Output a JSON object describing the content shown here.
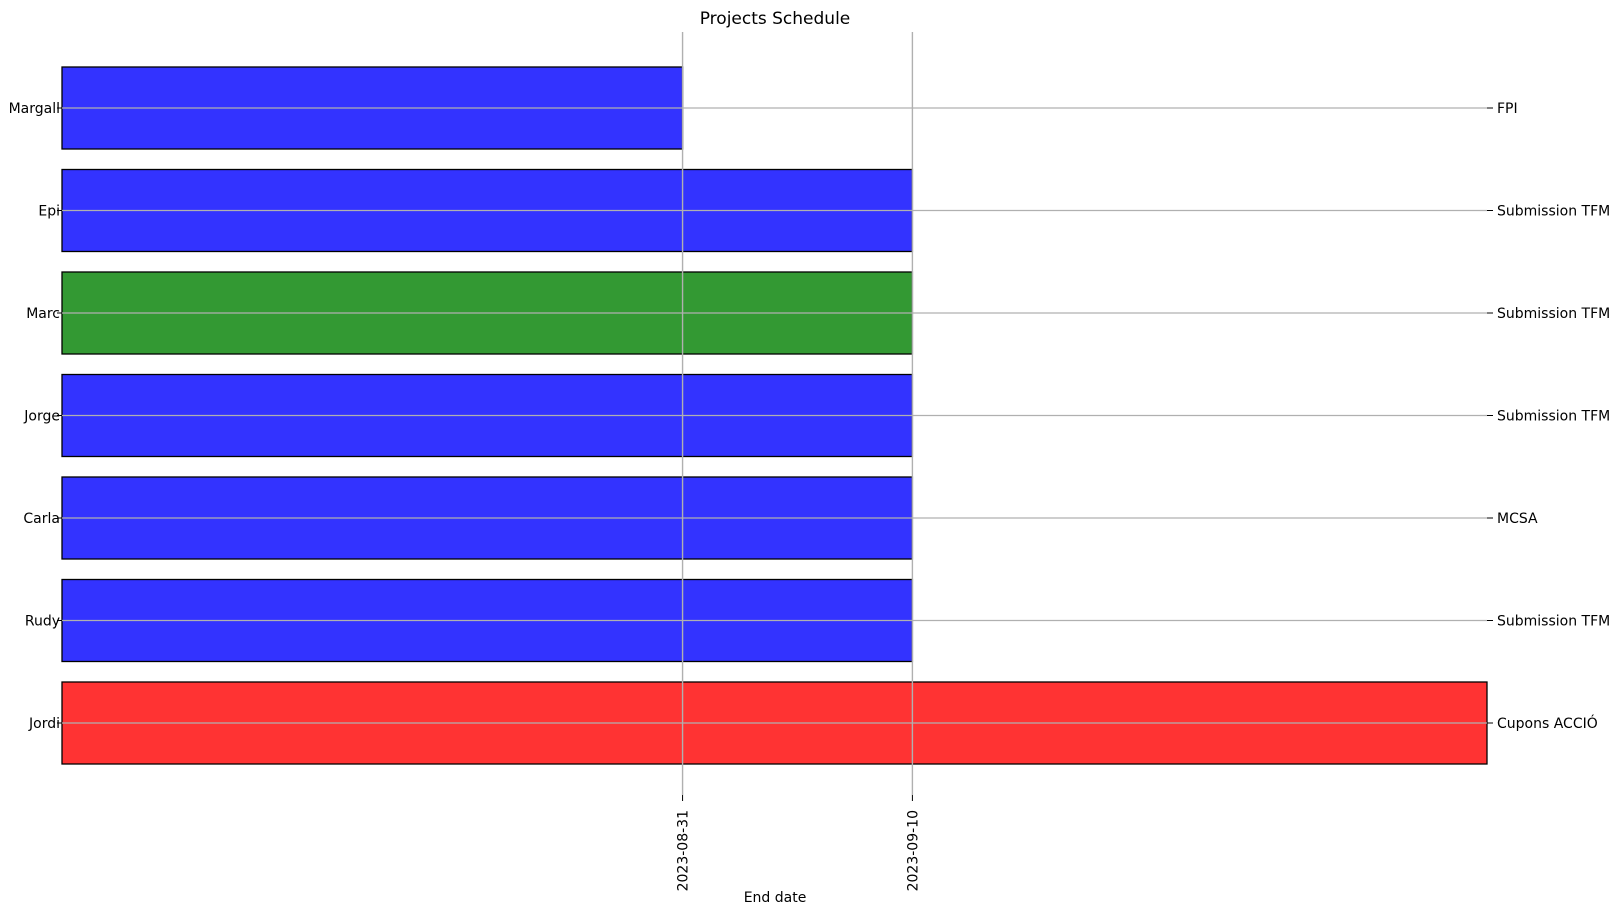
{
  "chart_data": {
    "type": "bar",
    "orientation": "horizontal",
    "title": "Projects Schedule",
    "xlabel": "End date",
    "ylabel": "",
    "x_axis": "date",
    "x_tick_labels": [
      "2023-08-31",
      "2023-09-10"
    ],
    "xlim": [
      "2023-08-04",
      "2023-10-05"
    ],
    "grid": true,
    "legend": "none",
    "colors": {
      "blue": "#3333ff",
      "green": "#339933",
      "red": "#ff3333",
      "edge": "#000000",
      "grid": "#b0b0b0"
    },
    "bars": [
      {
        "person": "Margall",
        "project": "FPI",
        "end": "2023-08-31",
        "color": "blue"
      },
      {
        "person": "Epi",
        "project": "Submission TFM",
        "end": "2023-09-10",
        "color": "blue"
      },
      {
        "person": "Marc",
        "project": "Submission TFM",
        "end": "2023-09-10",
        "color": "green"
      },
      {
        "person": "Jorge",
        "project": "Submission TFM",
        "end": "2023-09-10",
        "color": "blue"
      },
      {
        "person": "Carla",
        "project": "MCSA",
        "end": "2023-09-10",
        "color": "blue"
      },
      {
        "person": "Rudy",
        "project": "Submission TFM",
        "end": "2023-09-10",
        "color": "blue"
      },
      {
        "person": "Jordi",
        "project": "Cupons ACCIÓ",
        "end": "2023-10-05",
        "color": "red"
      }
    ]
  }
}
